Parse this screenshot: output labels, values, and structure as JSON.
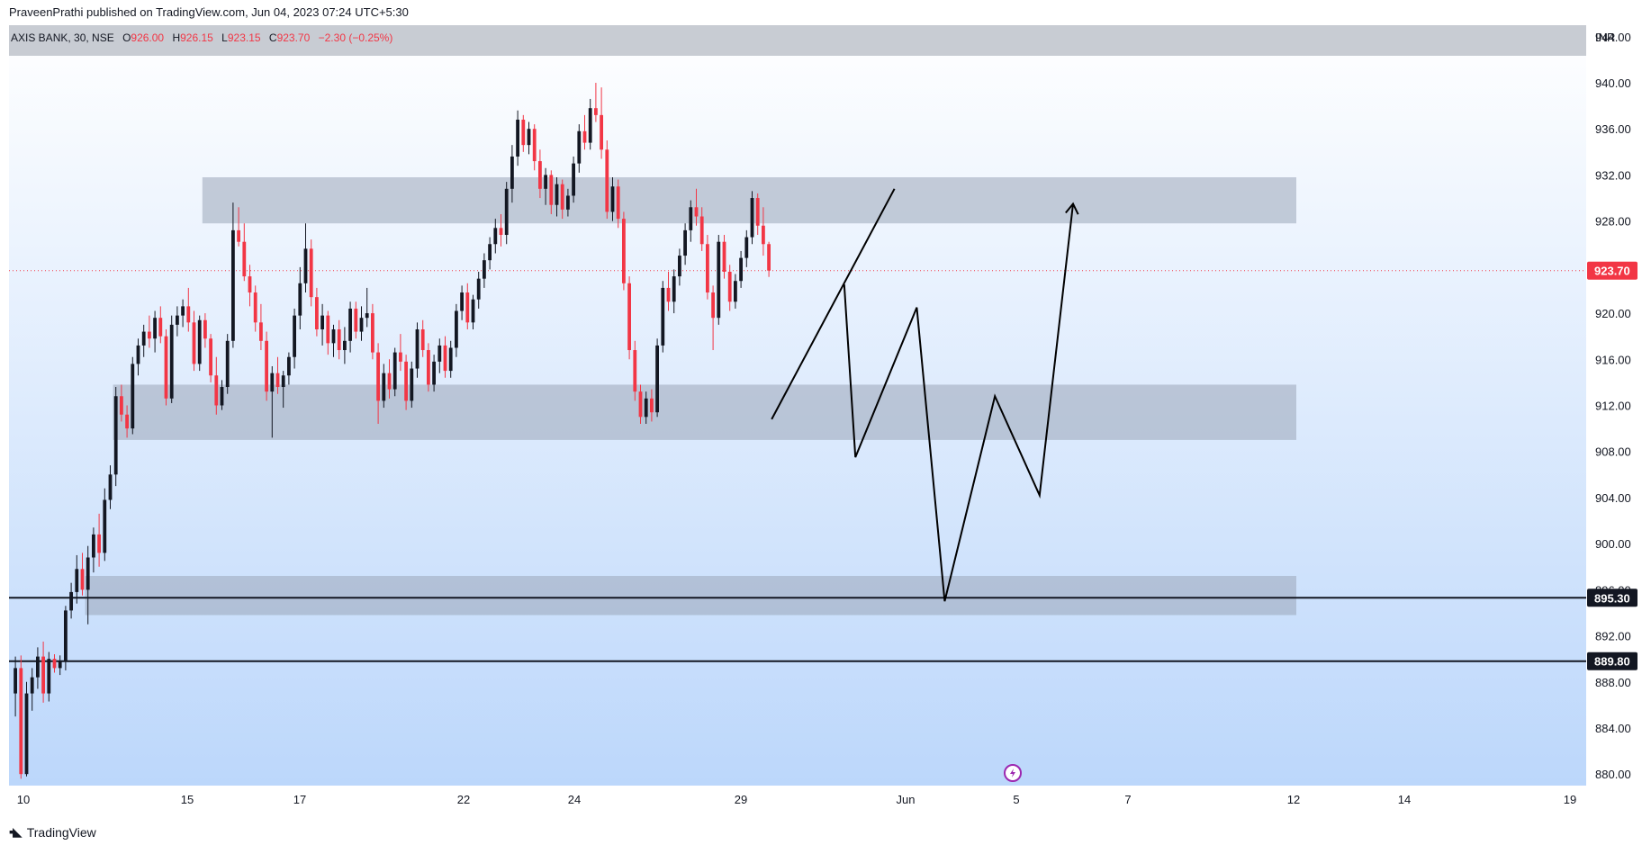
{
  "header": {
    "published": "PraveenPrathi published on TradingView.com, Jun 04, 2023 07:24 UTC+5:30"
  },
  "legend": {
    "symbol": "AXIS BANK, 30, NSE",
    "o_label": "O",
    "o": "926.00",
    "h_label": "H",
    "h": "926.15",
    "l_label": "L",
    "l": "923.15",
    "c_label": "C",
    "c": "923.70",
    "change": "−2.30 (−0.25%)"
  },
  "currency": "INR",
  "footer": {
    "brand": "TradingView"
  },
  "colors": {
    "up": "#131722",
    "down": "#f23645",
    "zone": "#9aa6b8",
    "price_tag": "#f23645",
    "level_tag": "#131722",
    "bg_top": "#ffffff",
    "bg_bottom": "#bcd7fb"
  },
  "chart_data": {
    "type": "candlestick",
    "symbol": "AXIS BANK",
    "interval": "30",
    "exchange": "NSE",
    "ylim": [
      879,
      945
    ],
    "y_ticks": [
      "880.00",
      "884.00",
      "888.00",
      "892.00",
      "896.00",
      "900.00",
      "904.00",
      "908.00",
      "912.00",
      "916.00",
      "920.00",
      "924.00",
      "928.00",
      "932.00",
      "936.00",
      "940.00",
      "944.00"
    ],
    "x_ticks": [
      "10",
      "15",
      "17",
      "22",
      "24",
      "29",
      "Jun",
      "5",
      "7",
      "12",
      "14",
      "19"
    ],
    "current_price": "923.70",
    "horizontal_levels": [
      "895.30",
      "889.80"
    ],
    "zones": [
      {
        "from_bar": 34,
        "to_bar": 230,
        "low": 927.8,
        "high": 931.8
      },
      {
        "from_bar": 18,
        "to_bar": 230,
        "low": 909.0,
        "high": 913.8
      },
      {
        "from_bar": 13,
        "to_bar": 230,
        "low": 893.8,
        "high": 897.2
      }
    ],
    "trendline": {
      "from": [
        136,
        910.8
      ],
      "to": [
        158,
        930.8
      ]
    },
    "projection_path": [
      [
        149,
        922.5
      ],
      [
        151,
        907.5
      ],
      [
        162,
        920.5
      ],
      [
        167,
        895.0
      ],
      [
        176,
        912.8
      ],
      [
        184,
        904.2
      ],
      [
        190,
        929.5
      ]
    ],
    "candles": [
      [
        887.0,
        890.2,
        885.0,
        889.2
      ],
      [
        889.2,
        890.3,
        879.6,
        880.0
      ],
      [
        880.0,
        888.0,
        879.8,
        887.0
      ],
      [
        887.0,
        889.2,
        885.5,
        888.4
      ],
      [
        888.4,
        891.0,
        887.4,
        890.2
      ],
      [
        890.2,
        891.5,
        886.2,
        887.0
      ],
      [
        887.0,
        890.6,
        886.3,
        890.0
      ],
      [
        890.0,
        890.4,
        888.8,
        889.2
      ],
      [
        889.2,
        890.3,
        888.6,
        889.8
      ],
      [
        889.8,
        894.6,
        889.0,
        894.2
      ],
      [
        894.2,
        896.6,
        893.5,
        895.8
      ],
      [
        895.8,
        899.0,
        894.8,
        897.8
      ],
      [
        897.8,
        899.2,
        895.5,
        896.0
      ],
      [
        896.0,
        899.8,
        893.0,
        898.8
      ],
      [
        898.8,
        901.4,
        897.5,
        900.8
      ],
      [
        900.8,
        902.6,
        898.0,
        899.2
      ],
      [
        899.2,
        904.8,
        898.5,
        903.8
      ],
      [
        903.8,
        906.8,
        903.0,
        906.0
      ],
      [
        906.0,
        913.6,
        905.0,
        912.8
      ],
      [
        912.8,
        913.8,
        910.6,
        911.2
      ],
      [
        911.2,
        912.0,
        909.2,
        910.0
      ],
      [
        910.0,
        916.2,
        909.5,
        915.6
      ],
      [
        915.6,
        917.8,
        914.6,
        917.2
      ],
      [
        917.2,
        919.0,
        916.2,
        918.4
      ],
      [
        918.4,
        919.8,
        917.0,
        917.8
      ],
      [
        917.8,
        920.2,
        916.6,
        919.6
      ],
      [
        919.6,
        920.6,
        917.4,
        918.0
      ],
      [
        918.0,
        918.6,
        912.0,
        912.6
      ],
      [
        912.6,
        919.8,
        912.2,
        919.0
      ],
      [
        919.0,
        920.6,
        918.0,
        919.8
      ],
      [
        919.8,
        921.2,
        918.8,
        920.6
      ],
      [
        920.6,
        922.2,
        918.4,
        919.2
      ],
      [
        919.2,
        920.2,
        915.0,
        915.6
      ],
      [
        915.6,
        919.8,
        915.0,
        919.4
      ],
      [
        919.4,
        920.0,
        917.0,
        917.8
      ],
      [
        917.8,
        918.2,
        914.0,
        914.6
      ],
      [
        914.6,
        916.2,
        911.2,
        912.0
      ],
      [
        912.0,
        914.2,
        911.6,
        913.6
      ],
      [
        913.6,
        918.2,
        913.0,
        917.6
      ],
      [
        917.6,
        929.6,
        917.0,
        927.2
      ],
      [
        927.2,
        929.2,
        925.8,
        926.2
      ],
      [
        926.2,
        927.8,
        922.8,
        923.2
      ],
      [
        923.2,
        924.2,
        920.6,
        921.8
      ],
      [
        921.8,
        922.4,
        918.4,
        919.2
      ],
      [
        919.2,
        920.8,
        916.8,
        917.6
      ],
      [
        917.6,
        918.4,
        912.4,
        913.2
      ],
      [
        913.2,
        915.4,
        909.2,
        914.8
      ],
      [
        914.8,
        916.2,
        913.0,
        913.6
      ],
      [
        913.6,
        915.0,
        911.8,
        914.6
      ],
      [
        914.6,
        916.6,
        913.8,
        916.2
      ],
      [
        916.2,
        920.4,
        915.2,
        919.8
      ],
      [
        919.8,
        924.0,
        918.6,
        922.6
      ],
      [
        922.6,
        927.8,
        921.8,
        925.6
      ],
      [
        925.6,
        926.4,
        920.6,
        921.4
      ],
      [
        921.4,
        922.2,
        918.0,
        918.6
      ],
      [
        918.6,
        920.8,
        917.2,
        919.8
      ],
      [
        919.8,
        920.2,
        916.4,
        917.4
      ],
      [
        917.4,
        919.0,
        916.2,
        918.6
      ],
      [
        918.6,
        919.4,
        916.0,
        916.8
      ],
      [
        916.8,
        918.8,
        915.6,
        917.6
      ],
      [
        917.6,
        921.0,
        916.6,
        920.4
      ],
      [
        920.4,
        921.0,
        917.8,
        918.4
      ],
      [
        918.4,
        920.6,
        917.6,
        919.6
      ],
      [
        919.6,
        922.2,
        918.8,
        920.0
      ],
      [
        920.0,
        920.8,
        916.0,
        916.6
      ],
      [
        916.6,
        917.4,
        910.4,
        912.4
      ],
      [
        912.4,
        915.6,
        911.8,
        914.8
      ],
      [
        914.8,
        916.0,
        912.6,
        913.4
      ],
      [
        913.4,
        917.0,
        912.8,
        916.6
      ],
      [
        916.6,
        918.2,
        915.0,
        915.8
      ],
      [
        915.8,
        916.4,
        911.6,
        912.4
      ],
      [
        912.4,
        915.8,
        911.8,
        915.2
      ],
      [
        915.2,
        919.2,
        914.4,
        918.6
      ],
      [
        918.6,
        919.4,
        916.2,
        916.8
      ],
      [
        916.8,
        917.4,
        913.2,
        913.8
      ],
      [
        913.8,
        916.4,
        913.2,
        915.8
      ],
      [
        915.8,
        917.8,
        914.8,
        917.2
      ],
      [
        917.2,
        918.0,
        914.4,
        915.0
      ],
      [
        915.0,
        917.6,
        914.4,
        917.0
      ],
      [
        917.0,
        920.8,
        916.2,
        920.2
      ],
      [
        920.2,
        922.4,
        919.4,
        921.8
      ],
      [
        921.8,
        922.6,
        918.6,
        919.2
      ],
      [
        919.2,
        921.6,
        918.6,
        921.2
      ],
      [
        921.2,
        923.6,
        920.4,
        923.0
      ],
      [
        923.0,
        925.2,
        922.2,
        924.6
      ],
      [
        924.6,
        926.6,
        923.8,
        926.0
      ],
      [
        926.0,
        928.2,
        925.2,
        927.4
      ],
      [
        927.4,
        928.6,
        925.8,
        926.8
      ],
      [
        926.8,
        931.4,
        926.0,
        930.8
      ],
      [
        930.8,
        934.6,
        929.6,
        933.6
      ],
      [
        933.6,
        937.6,
        932.8,
        936.8
      ],
      [
        936.8,
        937.2,
        934.0,
        934.6
      ],
      [
        934.6,
        936.6,
        933.8,
        936.0
      ],
      [
        936.0,
        936.4,
        932.4,
        933.2
      ],
      [
        933.2,
        934.2,
        930.0,
        930.8
      ],
      [
        930.8,
        932.6,
        929.4,
        932.0
      ],
      [
        932.0,
        932.4,
        928.6,
        929.4
      ],
      [
        929.4,
        931.8,
        928.4,
        931.2
      ],
      [
        931.2,
        931.6,
        928.2,
        929.0
      ],
      [
        929.0,
        930.8,
        928.4,
        930.2
      ],
      [
        930.2,
        933.6,
        929.6,
        933.0
      ],
      [
        933.0,
        936.4,
        932.2,
        935.8
      ],
      [
        935.8,
        937.2,
        934.2,
        934.8
      ],
      [
        934.8,
        938.6,
        934.2,
        937.8
      ],
      [
        937.8,
        940.0,
        936.6,
        937.2
      ],
      [
        937.2,
        939.6,
        933.4,
        934.2
      ],
      [
        934.2,
        935.0,
        928.2,
        928.8
      ],
      [
        928.8,
        931.8,
        928.0,
        931.0
      ],
      [
        931.0,
        931.6,
        927.4,
        928.2
      ],
      [
        928.2,
        928.8,
        922.0,
        922.6
      ],
      [
        922.6,
        923.2,
        916.0,
        916.8
      ],
      [
        916.8,
        917.6,
        912.4,
        913.2
      ],
      [
        913.2,
        913.8,
        910.4,
        911.0
      ],
      [
        911.0,
        913.2,
        910.4,
        912.6
      ],
      [
        912.6,
        913.4,
        910.6,
        911.4
      ],
      [
        911.4,
        917.8,
        911.0,
        917.2
      ],
      [
        917.2,
        922.8,
        916.6,
        922.2
      ],
      [
        922.2,
        923.6,
        920.2,
        921.0
      ],
      [
        921.0,
        923.8,
        920.0,
        923.2
      ],
      [
        923.2,
        925.6,
        922.4,
        925.0
      ],
      [
        925.0,
        927.8,
        924.2,
        927.2
      ],
      [
        927.2,
        929.8,
        926.2,
        929.2
      ],
      [
        929.2,
        930.8,
        927.6,
        928.4
      ],
      [
        928.4,
        929.2,
        925.4,
        926.0
      ],
      [
        926.0,
        926.8,
        921.2,
        921.8
      ],
      [
        921.8,
        922.4,
        916.8,
        919.6
      ],
      [
        919.6,
        926.8,
        919.0,
        926.2
      ],
      [
        926.2,
        926.8,
        923.0,
        923.6
      ],
      [
        923.6,
        924.2,
        920.2,
        921.0
      ],
      [
        921.0,
        923.4,
        920.4,
        922.8
      ],
      [
        922.8,
        925.4,
        922.2,
        924.8
      ],
      [
        924.8,
        927.2,
        924.0,
        926.6
      ],
      [
        926.6,
        930.6,
        926.0,
        930.0
      ],
      [
        930.0,
        930.4,
        926.8,
        927.6
      ],
      [
        927.6,
        929.2,
        925.0,
        926.0
      ],
      [
        926.0,
        926.2,
        923.15,
        923.7
      ]
    ]
  }
}
